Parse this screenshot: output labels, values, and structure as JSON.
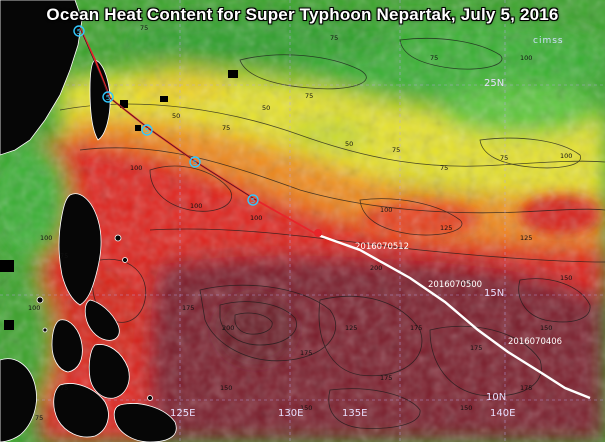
{
  "title": "Ocean Heat Content for Super Typhoon Nepartak, July 5, 2016",
  "map": {
    "lat_labels": [
      "25N",
      "15N",
      "10N"
    ],
    "lon_labels": [
      "125E",
      "130E",
      "135E",
      "140E"
    ]
  },
  "track": {
    "date_labels": [
      "2016070512",
      "2016070500",
      "2016070406"
    ]
  },
  "watermark": "cimss",
  "colors": {
    "track_past": "#ffffff",
    "track_forecast": "#e8242a",
    "marker": "#32c8ff"
  }
}
